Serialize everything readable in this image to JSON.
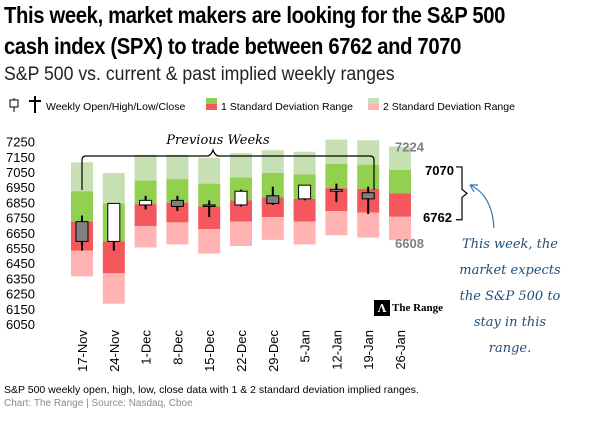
{
  "headline": {
    "line1": "This week, market makers are looking for the S&P 500",
    "line2": "cash index (SPX) to trade between  6762 and 7070"
  },
  "subtitle": "S&P 500 vs. current & past implied weekly ranges",
  "legend": {
    "ohlc_label": "Weekly Open/High/Low/Close",
    "sd1_label": "1 Standard Deviation Range",
    "sd2_label": "2 Standard Deviation Range"
  },
  "annotations": {
    "previous_weeks": "Previous Weeks",
    "upper_2sd": "7224",
    "upper_1sd": "7070",
    "lower_1sd": "6762",
    "lower_2sd": "6608"
  },
  "callout": "This week, the market expects the S&P 500 to stay in this range.",
  "brand": {
    "logo_glyph": "Λ",
    "name": "The Range"
  },
  "footnote": "S&P 500 weekly open, high, low, close data with 1 & 2 standard deviation implied ranges.",
  "source": "Chart: The Range | Source: Nasdaq, Cboe",
  "colors": {
    "sd2_upper": "#c6e0b4",
    "sd1_upper": "#92d050",
    "sd1_lower": "#f4575c",
    "sd2_lower": "#ffb3b3",
    "candle_down": "#808080",
    "candle_up": "#ffffff",
    "callout": "#1f4e79",
    "arrow": "#2e75b6"
  },
  "chart_data": {
    "type": "ohlc-with-ranges",
    "title": "S&P 500 vs. current & past implied weekly ranges",
    "xlabel": "",
    "ylabel": "",
    "ylim": [
      6050,
      7300
    ],
    "yticks": [
      6050,
      6150,
      6250,
      6350,
      6450,
      6550,
      6650,
      6750,
      6850,
      6950,
      7050,
      7150,
      7250
    ],
    "categories": [
      "17-Nov",
      "24-Nov",
      "1-Dec",
      "8-Dec",
      "15-Dec",
      "22-Dec",
      "29-Dec",
      "5-Jan",
      "12-Jan",
      "19-Jan",
      "26-Jan"
    ],
    "series": [
      {
        "name": "2 SD High",
        "values": [
          7120,
          7050,
          7170,
          7170,
          7150,
          7180,
          7200,
          7190,
          7270,
          7265,
          7224
        ]
      },
      {
        "name": "1 SD High",
        "values": [
          6930,
          6850,
          7000,
          7010,
          6980,
          7020,
          7050,
          7040,
          7110,
          7105,
          7070
        ]
      },
      {
        "name": "Mid",
        "values": [
          6730,
          6600,
          6845,
          6855,
          6830,
          6870,
          6890,
          6880,
          6950,
          6945,
          6916
        ]
      },
      {
        "name": "1 SD Low",
        "values": [
          6540,
          6390,
          6700,
          6725,
          6680,
          6730,
          6760,
          6730,
          6800,
          6790,
          6762
        ]
      },
      {
        "name": "2 SD Low",
        "values": [
          6370,
          6190,
          6560,
          6580,
          6520,
          6570,
          6610,
          6580,
          6640,
          6625,
          6608
        ]
      },
      {
        "name": "Open",
        "values": [
          6730,
          6600,
          6840,
          6870,
          6840,
          6840,
          6900,
          6880,
          6940,
          6920,
          null
        ]
      },
      {
        "name": "High",
        "values": [
          6770,
          6850,
          6900,
          6900,
          6870,
          6940,
          6960,
          6960,
          6980,
          6960,
          null
        ]
      },
      {
        "name": "Low",
        "values": [
          6540,
          6540,
          6810,
          6800,
          6760,
          6830,
          6840,
          6870,
          6860,
          6780,
          null
        ]
      },
      {
        "name": "Close",
        "values": [
          6600,
          6850,
          6870,
          6830,
          6830,
          6930,
          6850,
          6970,
          6940,
          6880,
          null
        ]
      }
    ]
  }
}
